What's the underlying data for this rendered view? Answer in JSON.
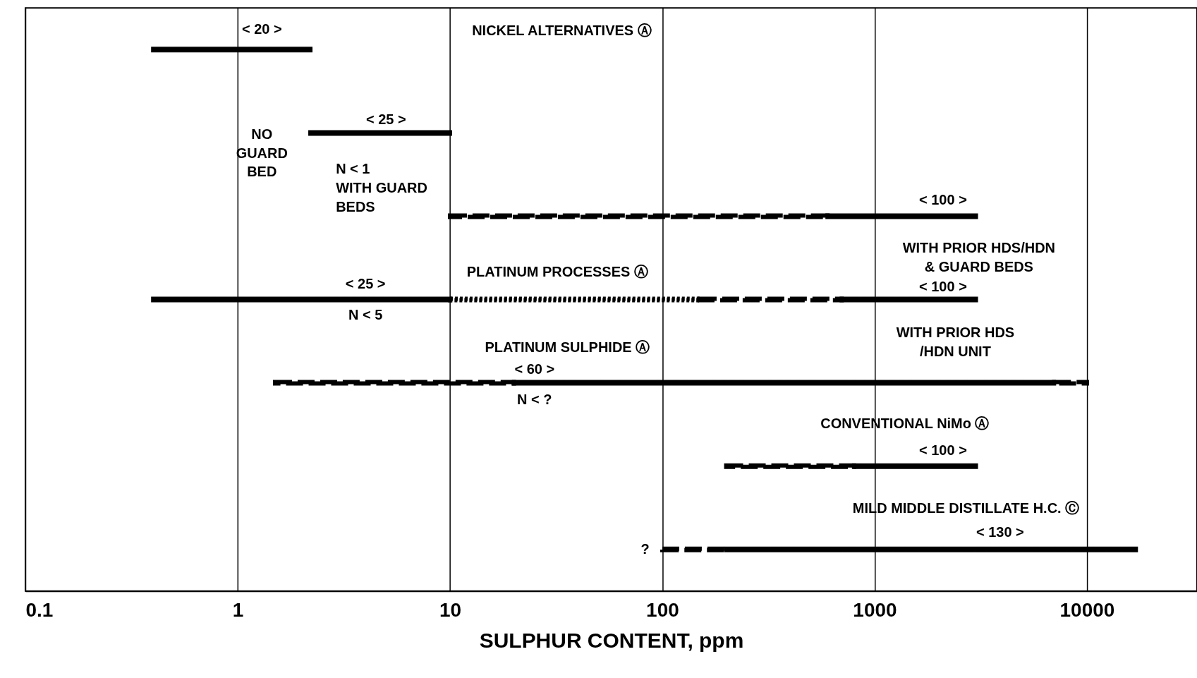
{
  "chart_data": {
    "type": "bar",
    "orientation": "horizontal",
    "xlabel": "SULPHUR CONTENT, ppm",
    "log": "x",
    "grid": "x",
    "tick_labels": "x",
    "xlim": [
      0.1,
      33000
    ],
    "xticks": [
      0.1,
      1,
      10,
      100,
      1000,
      10000
    ],
    "categories": [
      null,
      null,
      null,
      null,
      null,
      null,
      null
    ],
    "series": [
      {
        "color": "#000000",
        "line_style": "solid",
        "base": [
          0.4,
          2.2,
          600,
          0.4,
          20,
          800,
          200
        ],
        "values": [
          1.8,
          7.8,
          2400,
          9.6,
          6980,
          2200,
          16800
        ]
      },
      {
        "color": "#000000",
        "line_style": "solid",
        "base": [
          null,
          null,
          null,
          700,
          null,
          null,
          null
        ],
        "values": [
          null,
          null,
          null,
          2300,
          null,
          null,
          null
        ]
      },
      {
        "color": "#000000",
        "line_style": "dashed",
        "base": [
          null,
          null,
          10,
          150,
          1.5,
          200,
          100
        ],
        "values": [
          null,
          null,
          590,
          550,
          18.5,
          600,
          100
        ]
      },
      {
        "color": "#000000",
        "line_style": "dashed",
        "base": [
          null,
          null,
          null,
          null,
          7000,
          null,
          null
        ],
        "values": [
          null,
          null,
          null,
          null,
          3000,
          null,
          null
        ]
      },
      {
        "color": "#000000",
        "line_style": "dotted",
        "base": [
          null,
          null,
          null,
          10,
          null,
          null,
          null
        ],
        "values": [
          null,
          null,
          null,
          140,
          null,
          null,
          null
        ]
      }
    ],
    "annotations": [
      "< 20 >",
      "NO\nGUARD\nBED",
      "< 25 >",
      "N < 1\nWITH GUARD\nBEDS",
      "NICKEL ALTERNATIVES Ⓐ",
      "< 100 >",
      "WITH PRIOR HDS/HDN\n& GUARD BEDS",
      "PLATINUM PROCESSES Ⓐ",
      "< 25 >",
      "N < 5",
      "< 100 >",
      "WITH PRIOR HDS\n/HDN UNIT",
      "PLATINUM SULPHIDE Ⓐ",
      "< 60 >",
      "N < ?",
      "CONVENTIONAL NiMo Ⓐ",
      "< 100 >",
      "MILD MIDDLE DISTILLATE H.C. Ⓒ",
      "< 130 >",
      "?"
    ]
  }
}
